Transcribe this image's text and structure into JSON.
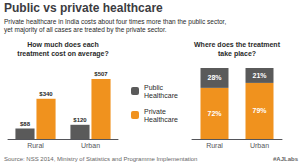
{
  "title": "Public vs private healthcare",
  "subtitle": "Private healthcare in India costs about four times more than the public sector,\nyet majority of all cases are treated by the private sector.",
  "annotations": [
    "Source: NSS 2014, Ministry of Statistics and Programme Implementation",
    "#AJLabs"
  ],
  "chart_data": [
    {
      "type": "bar",
      "title": "How much does each\ntreatment cost on average?",
      "categories": [
        "Rural",
        "Urban"
      ],
      "series": [
        {
          "name": "Public\nHealthcare",
          "color": "#5a5a5a",
          "values": [
            88,
            120
          ],
          "value_labels": [
            "$88",
            "$120"
          ]
        },
        {
          "name": "Private\nHealthcare",
          "color": "#f0921e",
          "values": [
            340,
            507
          ],
          "value_labels": [
            "$340",
            "$507"
          ]
        }
      ],
      "ylim": [
        0,
        600
      ],
      "grid": false,
      "tick_labels": "x",
      "data_labels": true,
      "legend": "right"
    },
    {
      "type": "bar",
      "title": "Where does the treatment\ntake place?",
      "categories": [
        "Rural",
        "Urban"
      ],
      "series": [
        {
          "name": "Private\nHealthcare",
          "color": "#f0921e",
          "values": [
            72,
            79
          ],
          "value_labels": [
            "72%",
            "79%"
          ]
        },
        {
          "name": "Public\nHealthcare",
          "color": "#5a5a5a",
          "values": [
            28,
            21
          ],
          "value_labels": [
            "28%",
            "21%"
          ]
        }
      ],
      "ylim": [
        0,
        100
      ],
      "grid": false,
      "tick_labels": "x",
      "data_labels": true,
      "stacked": true
    }
  ]
}
